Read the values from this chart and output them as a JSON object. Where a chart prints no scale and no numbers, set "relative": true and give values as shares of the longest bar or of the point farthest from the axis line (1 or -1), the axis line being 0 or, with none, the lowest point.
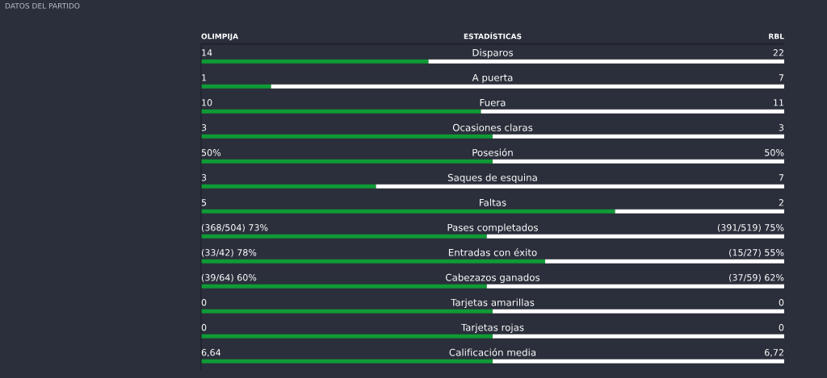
{
  "chart_data": {
    "type": "bar",
    "orientation": "horizontal",
    "stacked": true,
    "relative": true,
    "title": "DATOS DEL PARTIDO",
    "ylabel": "ESTADÍSTICAS",
    "categories": [
      "Disparos",
      "A puerta",
      "Fuera",
      "Ocasiones claras",
      "Posesión",
      "Saques de esquina",
      "Faltas",
      "Pases completados",
      "Entradas con éxito",
      "Cabezazos ganados",
      "Tarjetas amarillas",
      "Tarjetas rojas",
      "Calificación media"
    ],
    "series": [
      {
        "name": "OLIMPIJA",
        "color": "#0f9a35",
        "values": [
          0.39,
          0.12,
          0.48,
          0.5,
          0.5,
          0.3,
          0.71,
          0.49,
          0.59,
          0.49,
          0.5,
          0.5,
          0.5
        ]
      },
      {
        "name": "RBL",
        "color": "#ffffff",
        "values": [
          0.61,
          0.88,
          0.52,
          0.5,
          0.5,
          0.7,
          0.29,
          0.51,
          0.41,
          0.51,
          0.5,
          0.5,
          0.5
        ]
      }
    ],
    "annotations": [
      {
        "text": "14",
        "y": "Disparos"
      },
      {
        "text": "22",
        "y": "Disparos"
      },
      {
        "text": "1",
        "y": "A puerta"
      },
      {
        "text": "7",
        "y": "A puerta"
      },
      {
        "text": "10",
        "y": "Fuera"
      },
      {
        "text": "11",
        "y": "Fuera"
      },
      {
        "text": "3",
        "y": "Ocasiones claras"
      },
      {
        "text": "3",
        "y": "Ocasiones claras"
      },
      {
        "text": "50%",
        "y": "Posesión"
      },
      {
        "text": "50%",
        "y": "Posesión"
      },
      {
        "text": "3",
        "y": "Saques de esquina"
      },
      {
        "text": "7",
        "y": "Saques de esquina"
      },
      {
        "text": "5",
        "y": "Faltas"
      },
      {
        "text": "2",
        "y": "Faltas"
      },
      {
        "text": "(368/504) 73%",
        "y": "Pases completados"
      },
      {
        "text": "(391/519) 75%",
        "y": "Pases completados"
      },
      {
        "text": "(33/42) 78%",
        "y": "Entradas con éxito"
      },
      {
        "text": "(15/27) 55%",
        "y": "Entradas con éxito"
      },
      {
        "text": "(39/64) 60%",
        "y": "Cabezazos ganados"
      },
      {
        "text": "(37/59) 62%",
        "y": "Cabezazos ganados"
      },
      {
        "text": "0",
        "y": "Tarjetas amarillas"
      },
      {
        "text": "0",
        "y": "Tarjetas amarillas"
      },
      {
        "text": "0",
        "y": "Tarjetas rojas"
      },
      {
        "text": "0",
        "y": "Tarjetas rojas"
      },
      {
        "text": "6,64",
        "y": "Calificación media"
      },
      {
        "text": "6,72",
        "y": "Calificación media"
      }
    ]
  }
}
